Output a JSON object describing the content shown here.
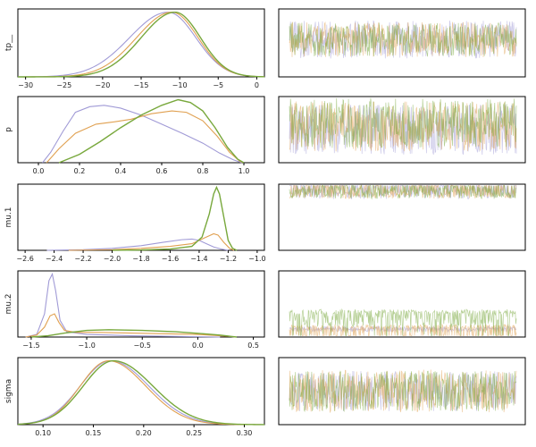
{
  "chart_data": [
    {
      "type": "line",
      "kind": "kde",
      "ylabel": "tp__",
      "xlim": [
        -31,
        1
      ],
      "xticks": [
        -30,
        -25,
        -20,
        -15,
        -10,
        -5,
        0
      ],
      "xtick_labels": [
        "−30",
        "−25",
        "−20",
        "−15",
        "−10",
        "−5",
        "0"
      ],
      "series": [
        {
          "color": "#a09ad6",
          "peak": -11.5,
          "sigma_left": 5.0,
          "sigma_right": 3.6
        },
        {
          "color": "#e0a050",
          "peak": -11.0,
          "sigma_left": 4.6,
          "sigma_right": 3.4
        },
        {
          "color": "#78a83c",
          "peak": -10.6,
          "sigma_left": 4.4,
          "sigma_right": 3.3
        }
      ]
    },
    {
      "type": "line",
      "kind": "kde",
      "ylabel": "p",
      "xlim": [
        -0.1,
        1.1
      ],
      "xticks": [
        0.0,
        0.2,
        0.4,
        0.6,
        0.8,
        1.0
      ],
      "xtick_labels": [
        "0.0",
        "0.2",
        "0.4",
        "0.6",
        "0.8",
        "1.0"
      ],
      "series": [
        {
          "color": "#a09ad6",
          "points": [
            [
              0.02,
              0
            ],
            [
              0.06,
              0.15
            ],
            [
              0.12,
              0.45
            ],
            [
              0.18,
              0.72
            ],
            [
              0.25,
              0.8
            ],
            [
              0.32,
              0.82
            ],
            [
              0.4,
              0.78
            ],
            [
              0.5,
              0.68
            ],
            [
              0.6,
              0.55
            ],
            [
              0.7,
              0.42
            ],
            [
              0.8,
              0.28
            ],
            [
              0.88,
              0.14
            ],
            [
              0.95,
              0.04
            ],
            [
              0.99,
              0
            ]
          ]
        },
        {
          "color": "#e0a050",
          "points": [
            [
              0.04,
              0
            ],
            [
              0.1,
              0.2
            ],
            [
              0.18,
              0.42
            ],
            [
              0.28,
              0.55
            ],
            [
              0.36,
              0.58
            ],
            [
              0.45,
              0.62
            ],
            [
              0.55,
              0.7
            ],
            [
              0.65,
              0.74
            ],
            [
              0.72,
              0.72
            ],
            [
              0.8,
              0.6
            ],
            [
              0.87,
              0.38
            ],
            [
              0.93,
              0.15
            ],
            [
              0.98,
              0.02
            ],
            [
              1.0,
              0
            ]
          ]
        },
        {
          "color": "#78a83c",
          "points": [
            [
              0.1,
              0
            ],
            [
              0.2,
              0.12
            ],
            [
              0.3,
              0.3
            ],
            [
              0.4,
              0.5
            ],
            [
              0.5,
              0.68
            ],
            [
              0.6,
              0.82
            ],
            [
              0.68,
              0.9
            ],
            [
              0.74,
              0.86
            ],
            [
              0.8,
              0.74
            ],
            [
              0.86,
              0.5
            ],
            [
              0.92,
              0.22
            ],
            [
              0.97,
              0.05
            ],
            [
              1.0,
              0
            ]
          ]
        }
      ]
    },
    {
      "type": "line",
      "kind": "kde",
      "ylabel": "mu.1",
      "xlim": [
        -2.65,
        -0.95
      ],
      "xticks": [
        -2.6,
        -2.4,
        -2.2,
        -2.0,
        -1.8,
        -1.6,
        -1.4,
        -1.2,
        -1.0
      ],
      "xtick_labels": [
        "−2.6",
        "−2.4",
        "−2.2",
        "−2.0",
        "−1.8",
        "−1.6",
        "−1.4",
        "−1.2",
        "−1.0"
      ],
      "series": [
        {
          "color": "#a09ad6",
          "points": [
            [
              -2.45,
              0
            ],
            [
              -2.2,
              0.01
            ],
            [
              -2.0,
              0.03
            ],
            [
              -1.8,
              0.07
            ],
            [
              -1.65,
              0.12
            ],
            [
              -1.52,
              0.16
            ],
            [
              -1.45,
              0.17
            ],
            [
              -1.4,
              0.15
            ],
            [
              -1.35,
              0.1
            ],
            [
              -1.3,
              0.05
            ],
            [
              -1.25,
              0.02
            ],
            [
              -1.2,
              0
            ]
          ]
        },
        {
          "color": "#e0a050",
          "points": [
            [
              -2.3,
              0
            ],
            [
              -2.0,
              0.01
            ],
            [
              -1.8,
              0.03
            ],
            [
              -1.6,
              0.06
            ],
            [
              -1.45,
              0.1
            ],
            [
              -1.35,
              0.2
            ],
            [
              -1.3,
              0.25
            ],
            [
              -1.27,
              0.23
            ],
            [
              -1.23,
              0.12
            ],
            [
              -1.19,
              0.03
            ],
            [
              -1.16,
              0
            ]
          ]
        },
        {
          "color": "#78a83c",
          "points": [
            [
              -2.0,
              0
            ],
            [
              -1.8,
              0.005
            ],
            [
              -1.6,
              0.02
            ],
            [
              -1.45,
              0.06
            ],
            [
              -1.38,
              0.2
            ],
            [
              -1.33,
              0.55
            ],
            [
              -1.3,
              0.85
            ],
            [
              -1.28,
              0.95
            ],
            [
              -1.26,
              0.85
            ],
            [
              -1.23,
              0.5
            ],
            [
              -1.2,
              0.15
            ],
            [
              -1.17,
              0.03
            ],
            [
              -1.14,
              0
            ]
          ]
        }
      ]
    },
    {
      "type": "line",
      "kind": "kde",
      "ylabel": "mu.2",
      "xlim": [
        -1.62,
        0.6
      ],
      "xticks": [
        -1.5,
        -1.0,
        -0.5,
        0.0,
        0.5
      ],
      "xtick_labels": [
        "−1.5",
        "−1.0",
        "−0.5",
        "0.0",
        "0.5"
      ],
      "series": [
        {
          "color": "#a09ad6",
          "points": [
            [
              -1.55,
              0
            ],
            [
              -1.45,
              0.04
            ],
            [
              -1.38,
              0.35
            ],
            [
              -1.34,
              0.85
            ],
            [
              -1.31,
              0.95
            ],
            [
              -1.28,
              0.7
            ],
            [
              -1.24,
              0.25
            ],
            [
              -1.18,
              0.08
            ],
            [
              -1.0,
              0.04
            ],
            [
              -0.6,
              0.02
            ],
            [
              -0.2,
              0.01
            ],
            [
              0.2,
              0
            ]
          ]
        },
        {
          "color": "#e0a050",
          "points": [
            [
              -1.55,
              0
            ],
            [
              -1.45,
              0.03
            ],
            [
              -1.38,
              0.15
            ],
            [
              -1.33,
              0.32
            ],
            [
              -1.29,
              0.35
            ],
            [
              -1.25,
              0.22
            ],
            [
              -1.2,
              0.1
            ],
            [
              -1.1,
              0.07
            ],
            [
              -0.9,
              0.07
            ],
            [
              -0.6,
              0.06
            ],
            [
              -0.3,
              0.05
            ],
            [
              0.0,
              0.04
            ],
            [
              0.2,
              0.02
            ],
            [
              0.35,
              0
            ]
          ]
        },
        {
          "color": "#78a83c",
          "points": [
            [
              -1.5,
              0
            ],
            [
              -1.35,
              0.02
            ],
            [
              -1.2,
              0.06
            ],
            [
              -1.0,
              0.1
            ],
            [
              -0.8,
              0.11
            ],
            [
              -0.5,
              0.1
            ],
            [
              -0.2,
              0.08
            ],
            [
              0.05,
              0.05
            ],
            [
              0.2,
              0.03
            ],
            [
              0.3,
              0.01
            ],
            [
              0.35,
              0
            ]
          ]
        }
      ]
    },
    {
      "type": "line",
      "kind": "kde",
      "ylabel": "sigma",
      "xlim": [
        0.075,
        0.32
      ],
      "xticks": [
        0.1,
        0.15,
        0.2,
        0.25,
        0.3
      ],
      "xtick_labels": [
        "0.10",
        "0.15",
        "0.20",
        "0.25",
        "0.30"
      ],
      "series": [
        {
          "color": "#a09ad6",
          "peak": 0.167,
          "sigma_left": 0.03,
          "sigma_right": 0.038
        },
        {
          "color": "#e0a050",
          "peak": 0.165,
          "sigma_left": 0.028,
          "sigma_right": 0.037
        },
        {
          "color": "#78a83c",
          "peak": 0.17,
          "sigma_left": 0.03,
          "sigma_right": 0.039
        }
      ]
    },
    {
      "type": "line",
      "kind": "trace",
      "ylabel": "",
      "series": [
        {
          "color": "#a09ad6",
          "center": 0.45,
          "amplitude": 0.28,
          "skew": "none"
        },
        {
          "color": "#e0a050",
          "center": 0.45,
          "amplitude": 0.26,
          "skew": "none"
        },
        {
          "color": "#78a83c",
          "center": 0.45,
          "amplitude": 0.25,
          "skew": "none"
        }
      ]
    },
    {
      "type": "line",
      "kind": "trace",
      "ylabel": "",
      "series": [
        {
          "color": "#a09ad6",
          "center": 0.5,
          "amplitude": 0.38,
          "skew": "none"
        },
        {
          "color": "#e0a050",
          "center": 0.45,
          "amplitude": 0.38,
          "skew": "none"
        },
        {
          "color": "#78a83c",
          "center": 0.4,
          "amplitude": 0.38,
          "skew": "none"
        }
      ]
    },
    {
      "type": "line",
      "kind": "trace",
      "ylabel": "",
      "series": [
        {
          "color": "#a09ad6",
          "center": 0.12,
          "amplitude": 0.7,
          "skew": "down"
        },
        {
          "color": "#e0a050",
          "center": 0.12,
          "amplitude": 0.65,
          "skew": "down"
        },
        {
          "color": "#78a83c",
          "center": 0.1,
          "amplitude": 0.12,
          "skew": "none"
        }
      ]
    },
    {
      "type": "line",
      "kind": "trace",
      "ylabel": "",
      "series": [
        {
          "color": "#a09ad6",
          "center": 0.88,
          "amplitude": 0.04,
          "skew": "none"
        },
        {
          "color": "#e0a050",
          "center": 0.88,
          "amplitude": 0.45,
          "skew": "up"
        },
        {
          "color": "#78a83c",
          "center": 0.65,
          "amplitude": 0.45,
          "skew": "up"
        }
      ]
    },
    {
      "type": "line",
      "kind": "trace",
      "ylabel": "",
      "series": [
        {
          "color": "#a09ad6",
          "center": 0.5,
          "amplitude": 0.3,
          "skew": "none"
        },
        {
          "color": "#e0a050",
          "center": 0.5,
          "amplitude": 0.32,
          "skew": "none"
        },
        {
          "color": "#78a83c",
          "center": 0.5,
          "amplitude": 0.3,
          "skew": "none"
        }
      ]
    }
  ]
}
